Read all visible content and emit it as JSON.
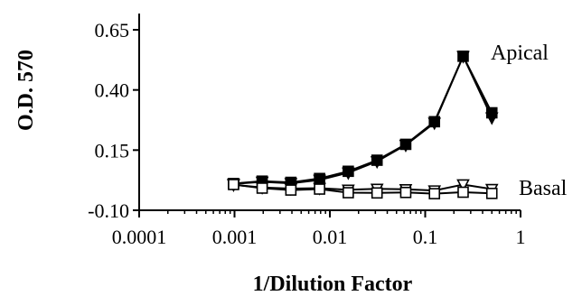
{
  "chart_data": {
    "type": "line",
    "xscale": "log",
    "xlabel": "1/Dilution Factor",
    "ylabel": "O.D. 570",
    "xlim": [
      0.0001,
      1
    ],
    "ylim": [
      -0.1,
      0.65
    ],
    "xticks": [
      0.0001,
      0.001,
      0.01,
      0.1,
      1
    ],
    "xtick_labels": [
      "0.0001",
      "0.001",
      "0.01",
      "0.1",
      "1"
    ],
    "yticks": [
      -0.1,
      0.15,
      0.4,
      0.65
    ],
    "ytick_labels": [
      "-0.10",
      "0.15",
      "0.40",
      "0.65"
    ],
    "grid": false,
    "legend": "none",
    "series": [
      {
        "name": "Apical",
        "marker": "filled-square",
        "color": "#000000",
        "x": [
          0.000977,
          0.00195,
          0.0039,
          0.0078,
          0.0156,
          0.03125,
          0.0625,
          0.125,
          0.25,
          0.5
        ],
        "y": [
          0.011,
          0.021,
          0.016,
          0.032,
          0.062,
          0.108,
          0.174,
          0.268,
          0.54,
          0.305
        ]
      },
      {
        "name": "",
        "marker": "filled-triangle-down",
        "color": "#000000",
        "x": [
          0.000977,
          0.00195,
          0.0039,
          0.0078,
          0.0156,
          0.03125,
          0.0625,
          0.125,
          0.25,
          0.5
        ],
        "y": [
          0.01,
          0.018,
          0.012,
          0.026,
          0.056,
          0.103,
          0.171,
          0.263,
          0.54,
          0.285
        ]
      },
      {
        "name": "Basal",
        "marker": "open-square",
        "color": "#000000",
        "x": [
          0.000977,
          0.00195,
          0.0039,
          0.0078,
          0.0156,
          0.03125,
          0.0625,
          0.125,
          0.25,
          0.5
        ],
        "y": [
          0.007,
          -0.008,
          -0.016,
          -0.012,
          -0.027,
          -0.028,
          -0.026,
          -0.031,
          -0.025,
          -0.03
        ]
      },
      {
        "name": "",
        "marker": "open-triangle-down",
        "color": "#000000",
        "x": [
          0.000977,
          0.00195,
          0.0039,
          0.0078,
          0.0156,
          0.03125,
          0.0625,
          0.125,
          0.25,
          0.5
        ],
        "y": [
          0.006,
          -0.005,
          -0.01,
          -0.008,
          -0.015,
          -0.011,
          -0.013,
          -0.018,
          0.007,
          -0.012
        ]
      }
    ]
  }
}
